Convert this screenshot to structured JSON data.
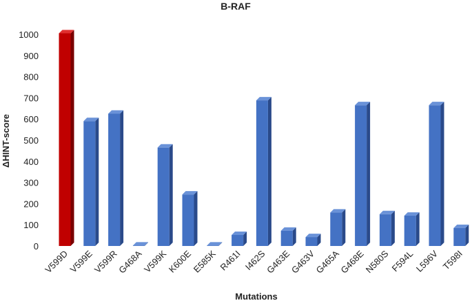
{
  "chart_data": {
    "type": "bar",
    "title": "B-RAF",
    "xlabel": "Mutations",
    "ylabel": "ΔHINT-score",
    "ylim": [
      0,
      1000
    ],
    "yticks": [
      0,
      100,
      200,
      300,
      400,
      500,
      600,
      700,
      800,
      900,
      1000
    ],
    "grid": false,
    "legend": "none",
    "categories": [
      "V599D",
      "V599E",
      "V599R",
      "G468A",
      "V599K",
      "K600E",
      "E585K",
      "R461I",
      "I462S",
      "G463E",
      "G463V",
      "G465A",
      "G468E",
      "N580S",
      "F594L",
      "L596V",
      "T598I"
    ],
    "values": [
      1005,
      590,
      625,
      2,
      465,
      243,
      2,
      52,
      688,
      72,
      42,
      158,
      665,
      150,
      143,
      665,
      85
    ],
    "colors": {
      "highlight": "#c00000",
      "highlight_side": "#7a0000",
      "highlight_top": "#e03030",
      "bar": "#4472c4",
      "bar_side": "#2a4a8a",
      "bar_top": "#6a92d8"
    },
    "highlight_index": 0
  }
}
